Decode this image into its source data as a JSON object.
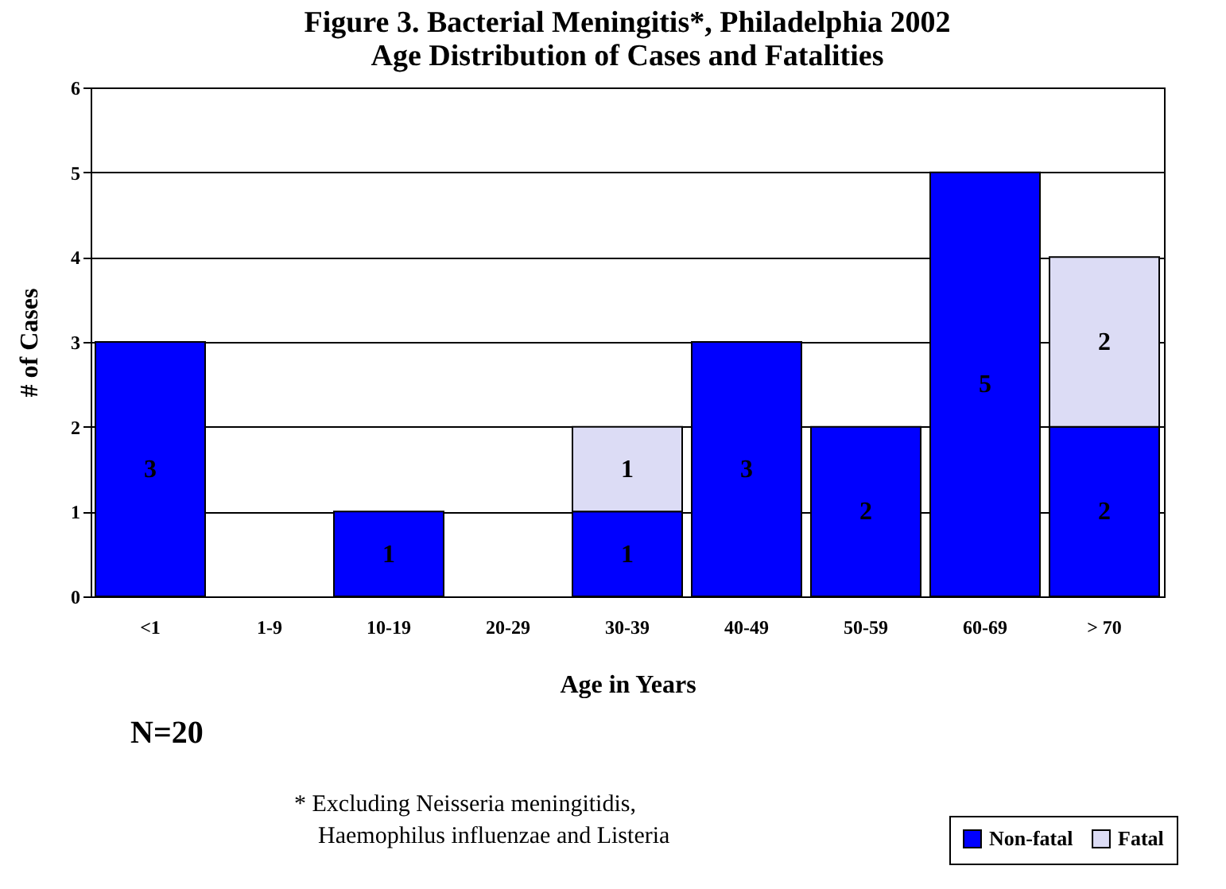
{
  "chart_data": {
    "type": "bar",
    "title": "Figure 3. Bacterial Meningitis*, Philadelphia 2002",
    "subtitle": "Age Distribution of Cases and Fatalities",
    "xlabel": "Age in Years",
    "ylabel": "# of Cases",
    "categories": [
      "<1",
      "1-9",
      "10-19",
      "20-29",
      "30-39",
      "40-49",
      "50-59",
      "60-69",
      "> 70"
    ],
    "series": [
      {
        "name": "Non-fatal",
        "color": "#0000ff",
        "values": [
          3,
          null,
          1,
          null,
          1,
          3,
          2,
          5,
          2
        ]
      },
      {
        "name": "Fatal",
        "color": "#dcdcf5",
        "values": [
          null,
          null,
          null,
          null,
          1,
          null,
          null,
          null,
          2
        ]
      }
    ],
    "stacked": true,
    "ylim": [
      0,
      6
    ],
    "yticks": [
      0,
      1,
      2,
      3,
      4,
      5,
      6
    ],
    "grid": "y",
    "data_labels": true,
    "legend": "bottom right",
    "annotations": [
      "N=20",
      "* Excluding Neisseria meningitidis,",
      "Haemophilus influenzae and Listeria"
    ]
  }
}
